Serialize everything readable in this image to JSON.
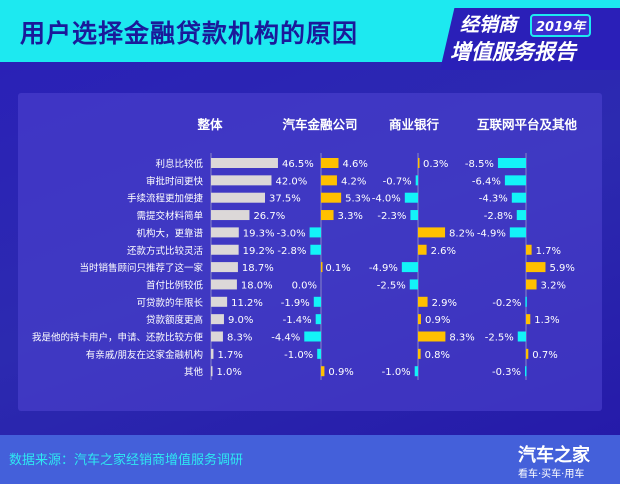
{
  "header": {
    "title": "用户选择金融贷款机构的原因",
    "badge_line1": "经销商",
    "badge_year": "2019年",
    "badge_line2": "增值服务报告"
  },
  "footer": {
    "source": "数据来源：汽车之家经销商增值服务调研",
    "logo_name": "汽车之家",
    "logo_slogan": "看车·买车·用车"
  },
  "colors": {
    "overall": "#dcd8d8",
    "positive": "#ffc000",
    "negative": "#13f3f8"
  },
  "chart_data": {
    "type": "bar",
    "categories": [
      "利息比较低",
      "审批时间更快",
      "手续流程更加便捷",
      "需提交材料简单",
      "机构大，更靠谱",
      "还款方式比较灵活",
      "当时销售顾问只推荐了这一家",
      "首付比例较低",
      "可贷款的年限长",
      "贷款额度更高",
      "我是他的持卡用户，申请、还款比较方便",
      "有亲戚/朋友在这家金融机构",
      "其他"
    ],
    "series": [
      {
        "name": "整体",
        "values": [
          46.5,
          42.0,
          37.5,
          26.7,
          19.3,
          19.2,
          18.7,
          18.0,
          11.2,
          9.0,
          8.3,
          1.7,
          1.0
        ]
      },
      {
        "name": "汽车金融公司",
        "values": [
          4.6,
          4.2,
          5.3,
          3.3,
          -3.0,
          -2.8,
          0.1,
          0.0,
          -1.9,
          -1.4,
          -4.4,
          -1.0,
          0.9
        ]
      },
      {
        "name": "商业银行",
        "values": [
          0.3,
          -0.7,
          -4.0,
          -2.3,
          8.2,
          2.6,
          -4.9,
          -2.5,
          2.9,
          0.9,
          8.3,
          0.8,
          -1.0
        ]
      },
      {
        "name": "互联网平台及其他",
        "values": [
          -8.5,
          -6.4,
          -4.3,
          -2.8,
          -4.9,
          1.7,
          5.9,
          3.2,
          -0.2,
          1.3,
          -2.5,
          0.7,
          -0.3
        ]
      }
    ],
    "unit": "%"
  }
}
